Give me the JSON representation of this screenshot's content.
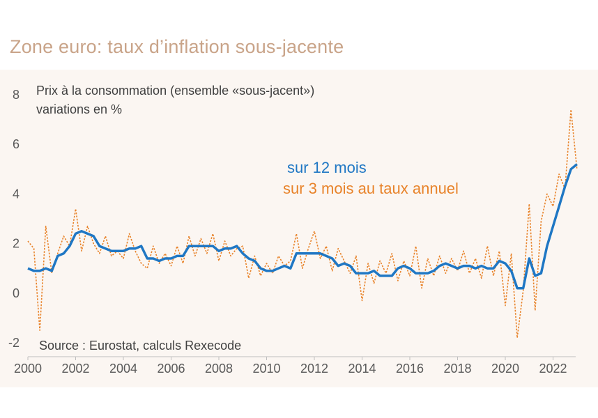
{
  "title": "Zone euro: taux d’inflation sous-jacente",
  "colors": {
    "series_12m": "#1f77c4",
    "series_3m": "#e8832a",
    "title": "#c9a489",
    "panel": "#fbf6f2"
  },
  "chart_data": {
    "type": "line",
    "ylabel_line1": "Prix à la consommation (ensemble «sous-jacent»)",
    "ylabel_line2": "variations en %",
    "source": "Source : Eurostat, calculs Rexecode",
    "ylim": [
      -2,
      8
    ],
    "xlim": [
      2000,
      2024
    ],
    "yticks": [
      "-2",
      "0",
      "2",
      "4",
      "6",
      "8"
    ],
    "xticks": [
      "2000",
      "2002",
      "2004",
      "2006",
      "2008",
      "2010",
      "2012",
      "2014",
      "2016",
      "2018",
      "2020",
      "2022"
    ],
    "grid": false,
    "series": [
      {
        "name": "sur 12 mois",
        "x": [
          2000.0,
          2000.25,
          2000.5,
          2000.75,
          2001.0,
          2001.25,
          2001.5,
          2001.75,
          2002.0,
          2002.25,
          2002.5,
          2002.75,
          2003.0,
          2003.25,
          2003.5,
          2003.75,
          2004.0,
          2004.25,
          2004.5,
          2004.75,
          2005.0,
          2005.25,
          2005.5,
          2005.75,
          2006.0,
          2006.25,
          2006.5,
          2006.75,
          2007.0,
          2007.25,
          2007.5,
          2007.75,
          2008.0,
          2008.25,
          2008.5,
          2008.75,
          2009.0,
          2009.25,
          2009.5,
          2009.75,
          2010.0,
          2010.25,
          2010.5,
          2010.75,
          2011.0,
          2011.25,
          2011.5,
          2011.75,
          2012.0,
          2012.25,
          2012.5,
          2012.75,
          2013.0,
          2013.25,
          2013.5,
          2013.75,
          2014.0,
          2014.25,
          2014.5,
          2014.75,
          2015.0,
          2015.25,
          2015.5,
          2015.75,
          2016.0,
          2016.25,
          2016.5,
          2016.75,
          2017.0,
          2017.25,
          2017.5,
          2017.75,
          2018.0,
          2018.25,
          2018.5,
          2018.75,
          2019.0,
          2019.25,
          2019.5,
          2019.75,
          2020.0,
          2020.25,
          2020.5,
          2020.75,
          2021.0,
          2021.25,
          2021.5,
          2021.75,
          2022.0,
          2022.25,
          2022.5,
          2022.75,
          2023.0
        ],
        "values": [
          1.0,
          0.9,
          0.9,
          1.0,
          0.9,
          1.5,
          1.6,
          1.9,
          2.4,
          2.5,
          2.4,
          2.3,
          1.9,
          1.8,
          1.7,
          1.7,
          1.7,
          1.8,
          1.8,
          1.9,
          1.4,
          1.4,
          1.3,
          1.4,
          1.4,
          1.5,
          1.5,
          1.9,
          1.9,
          1.9,
          1.9,
          1.9,
          1.7,
          1.8,
          1.8,
          1.9,
          1.6,
          1.4,
          1.3,
          1.0,
          0.9,
          0.9,
          1.0,
          1.1,
          1.0,
          1.6,
          1.6,
          1.6,
          1.6,
          1.6,
          1.5,
          1.4,
          1.1,
          1.2,
          1.1,
          0.8,
          0.8,
          0.8,
          0.9,
          0.7,
          0.7,
          0.7,
          1.0,
          1.1,
          1.0,
          0.8,
          0.8,
          0.8,
          0.9,
          1.1,
          1.2,
          1.1,
          1.0,
          1.1,
          1.1,
          1.0,
          1.1,
          1.0,
          1.0,
          1.3,
          1.2,
          0.9,
          0.2,
          0.2,
          1.4,
          0.7,
          0.8,
          1.9,
          2.7,
          3.5,
          4.3,
          5.0,
          5.2
        ]
      },
      {
        "name": "sur 3 mois au taux annuel",
        "x": [
          2000.0,
          2000.25,
          2000.5,
          2000.75,
          2001.0,
          2001.25,
          2001.5,
          2001.75,
          2002.0,
          2002.25,
          2002.5,
          2002.75,
          2003.0,
          2003.25,
          2003.5,
          2003.75,
          2004.0,
          2004.25,
          2004.5,
          2004.75,
          2005.0,
          2005.25,
          2005.5,
          2005.75,
          2006.0,
          2006.25,
          2006.5,
          2006.75,
          2007.0,
          2007.25,
          2007.5,
          2007.75,
          2008.0,
          2008.25,
          2008.5,
          2008.75,
          2009.0,
          2009.25,
          2009.5,
          2009.75,
          2010.0,
          2010.25,
          2010.5,
          2010.75,
          2011.0,
          2011.25,
          2011.5,
          2011.75,
          2012.0,
          2012.25,
          2012.5,
          2012.75,
          2013.0,
          2013.25,
          2013.5,
          2013.75,
          2014.0,
          2014.25,
          2014.5,
          2014.75,
          2015.0,
          2015.25,
          2015.5,
          2015.75,
          2016.0,
          2016.25,
          2016.5,
          2016.75,
          2017.0,
          2017.25,
          2017.5,
          2017.75,
          2018.0,
          2018.25,
          2018.5,
          2018.75,
          2019.0,
          2019.25,
          2019.5,
          2019.75,
          2020.0,
          2020.25,
          2020.5,
          2020.75,
          2021.0,
          2021.25,
          2021.5,
          2021.75,
          2022.0,
          2022.25,
          2022.5,
          2022.75,
          2023.0
        ],
        "values": [
          2.1,
          1.8,
          -1.5,
          2.7,
          0.8,
          1.6,
          2.3,
          1.9,
          3.4,
          1.7,
          2.7,
          2.0,
          1.6,
          2.3,
          1.5,
          1.7,
          1.4,
          2.4,
          1.7,
          1.2,
          1.0,
          1.9,
          1.2,
          1.6,
          1.1,
          1.9,
          1.2,
          2.3,
          1.5,
          2.2,
          1.6,
          2.4,
          1.3,
          2.1,
          1.5,
          1.8,
          1.9,
          0.6,
          1.5,
          0.7,
          1.2,
          0.8,
          1.5,
          1.1,
          1.3,
          2.4,
          1.0,
          1.8,
          2.5,
          1.4,
          1.9,
          0.9,
          1.8,
          1.3,
          0.8,
          1.5,
          -0.3,
          1.2,
          0.4,
          1.3,
          0.8,
          1.6,
          0.5,
          1.3,
          0.7,
          1.9,
          0.2,
          1.4,
          0.7,
          1.5,
          0.8,
          1.4,
          0.9,
          1.7,
          0.8,
          1.4,
          0.6,
          1.9,
          0.7,
          1.7,
          -0.5,
          1.6,
          -1.8,
          0.1,
          3.6,
          -0.7,
          2.9,
          4.0,
          3.5,
          4.8,
          4.2,
          7.4,
          5.0
        ]
      }
    ]
  }
}
